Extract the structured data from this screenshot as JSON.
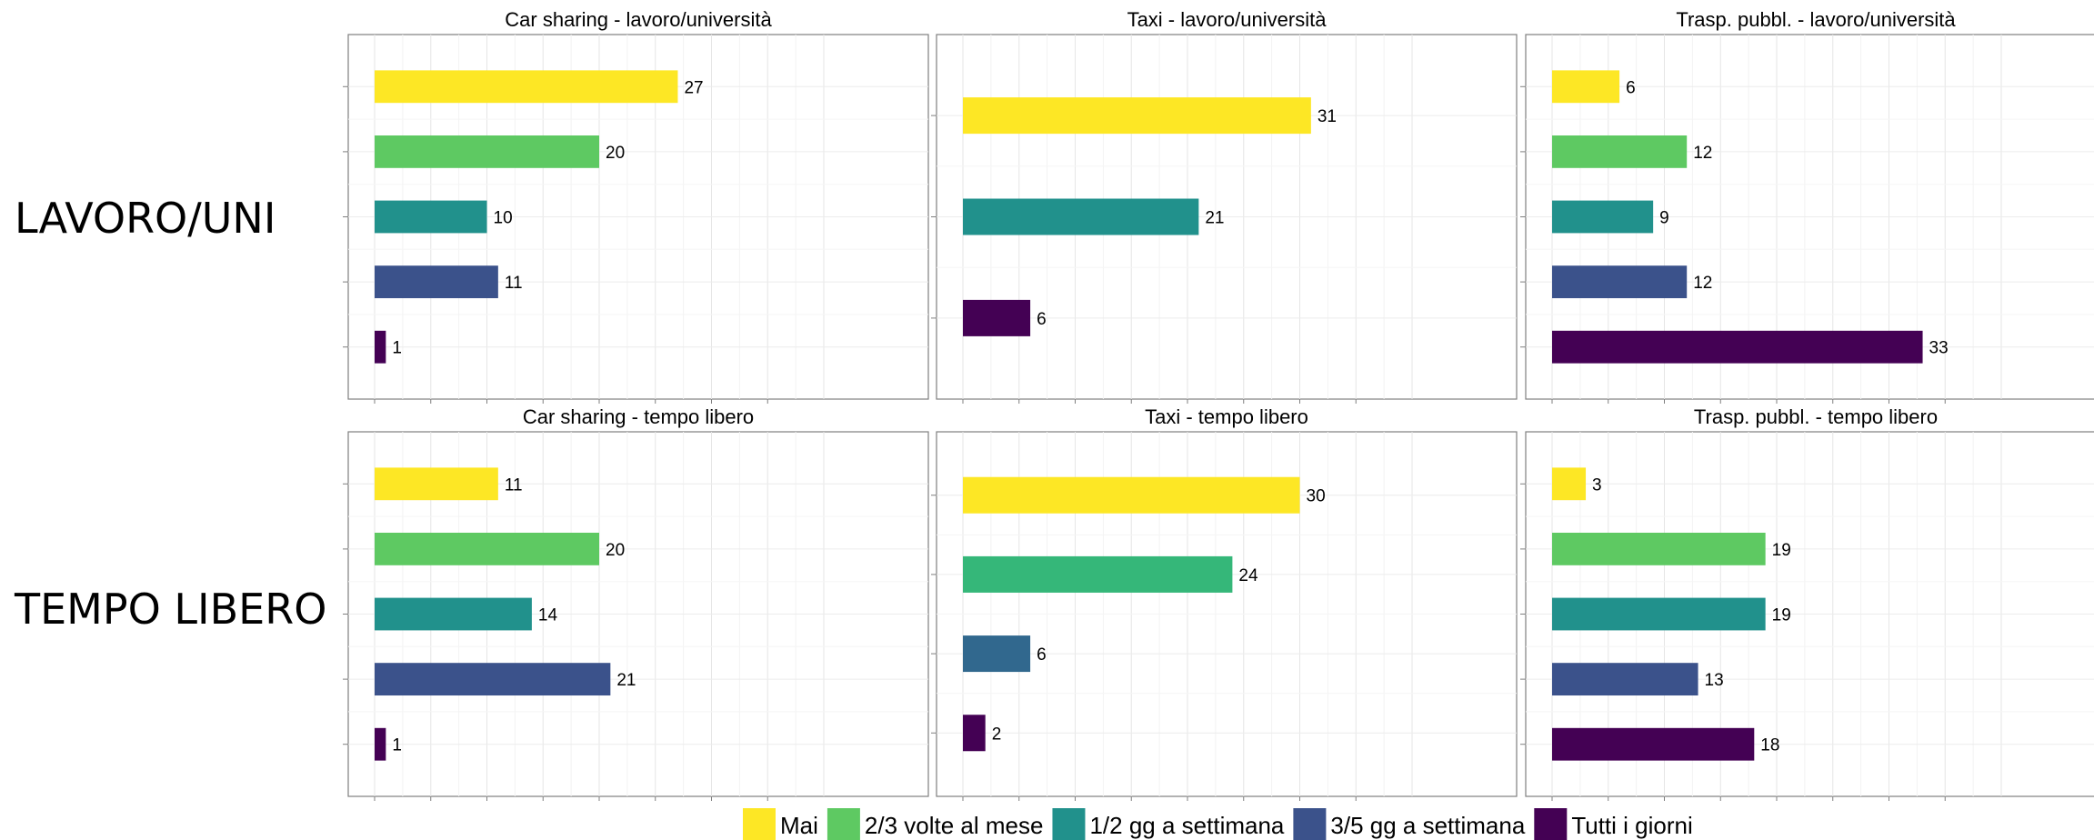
{
  "row_labels": [
    "LAVORO/UNI",
    "TEMPO LIBERO"
  ],
  "colors": {
    "Mai": "#FDE725",
    "2/3 volte al mese": "#5EC962",
    "1/2 gg a settimana": "#21918C",
    "3/5 gg a settimana": "#3B528B",
    "Tutti i giorni": "#440154"
  },
  "legend": [
    "Mai",
    "2/3 volte al mese",
    "1/2 gg a settimana",
    "3/5 gg a settimana",
    "Tutti i giorni"
  ],
  "chart_data": [
    {
      "type": "bar",
      "orientation": "horizontal",
      "title": "Car sharing - lavoro/università",
      "categories": [
        "Mai",
        "2/3 volte al mese",
        "1/2 gg a settimana",
        "3/5 gg a settimana",
        "Tutti i giorni"
      ],
      "values": [
        27,
        20,
        10,
        11,
        1
      ],
      "xlim": [
        0,
        40
      ],
      "grid": true
    },
    {
      "type": "bar",
      "orientation": "horizontal",
      "title": "Taxi - lavoro/università",
      "categories": [
        "Mai",
        "1/2 gg a settimana",
        "Tutti i giorni"
      ],
      "values": [
        31,
        21,
        6
      ],
      "colors": [
        "#FDE725",
        "#21918C",
        "#440154"
      ],
      "xlim": [
        0,
        40
      ],
      "grid": true
    },
    {
      "type": "bar",
      "orientation": "horizontal",
      "title": "Trasp. pubbl. - lavoro/università",
      "categories": [
        "Mai",
        "2/3 volte al mese",
        "1/2 gg a settimana",
        "3/5 gg a settimana",
        "Tutti i giorni"
      ],
      "values": [
        6,
        12,
        9,
        12,
        33
      ],
      "xlim": [
        0,
        40
      ],
      "grid": true
    },
    {
      "type": "bar",
      "orientation": "horizontal",
      "title": "Car sharing - tempo libero",
      "categories": [
        "Mai",
        "2/3 volte al mese",
        "1/2 gg a settimana",
        "3/5 gg a settimana",
        "Tutti i giorni"
      ],
      "values": [
        11,
        20,
        14,
        21,
        1
      ],
      "xlim": [
        0,
        40
      ],
      "grid": true
    },
    {
      "type": "bar",
      "orientation": "horizontal",
      "title": "Taxi - tempo libero",
      "categories": [
        "Mai",
        "2/3 volte al mese",
        "1/2 gg a settimana",
        "Tutti i giorni"
      ],
      "values": [
        30,
        24,
        6,
        2
      ],
      "colors": [
        "#FDE725",
        "#35B779",
        "#31688E",
        "#440154"
      ],
      "xlim": [
        0,
        40
      ],
      "grid": true
    },
    {
      "type": "bar",
      "orientation": "horizontal",
      "title": "Trasp. pubbl. - tempo libero",
      "categories": [
        "Mai",
        "2/3 volte al mese",
        "1/2 gg a settimana",
        "3/5 gg a settimana",
        "Tutti i giorni"
      ],
      "values": [
        3,
        19,
        19,
        13,
        18
      ],
      "xlim": [
        0,
        40
      ],
      "grid": true
    }
  ]
}
